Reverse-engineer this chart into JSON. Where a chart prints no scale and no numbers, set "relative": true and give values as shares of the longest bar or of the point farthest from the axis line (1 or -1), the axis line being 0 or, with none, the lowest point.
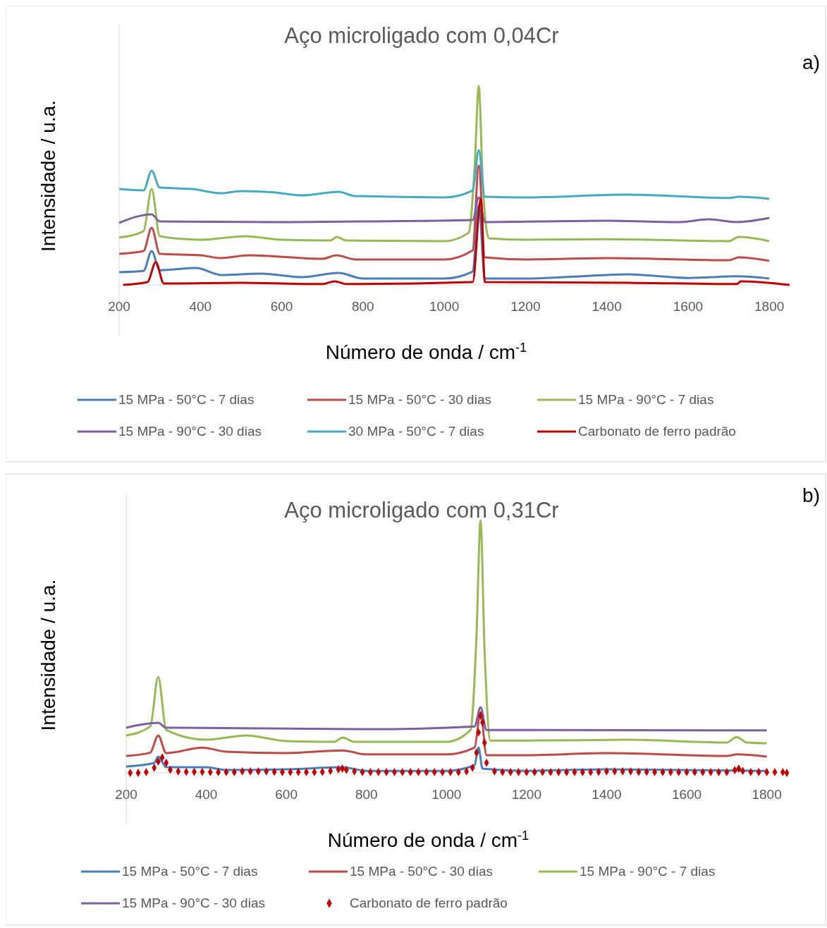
{
  "chart_data": [
    {
      "type": "line",
      "relative": true,
      "title": "Aço microligado com 0,04Cr",
      "xlabel": "Número de onda / cm$^{-1}$",
      "ylabel": "Intensidade / u.a.",
      "annotations": [
        "a)"
      ],
      "xlim": [
        200,
        1850
      ],
      "xticks": [
        200,
        400,
        600,
        800,
        1000,
        1200,
        1400,
        1600,
        1800
      ],
      "legend": "bottom",
      "series": [
        {
          "name": "15 MPa - 50°C - 7 dias",
          "color": "#4a7ebb",
          "x": [
            200,
            260,
            280,
            300,
            390,
            450,
            550,
            650,
            740,
            800,
            1000,
            1070,
            1085,
            1100,
            1200,
            1400,
            1450,
            1600,
            1720,
            1800
          ],
          "values": [
            0.064,
            0.07,
            0.17,
            0.074,
            0.085,
            0.05,
            0.057,
            0.039,
            0.06,
            0.032,
            0.032,
            0.067,
            0.4,
            0.032,
            0.032,
            0.05,
            0.053,
            0.035,
            0.043,
            0.032
          ]
        },
        {
          "name": "15 MPa - 50°C - 30 dias",
          "color": "#be4b48",
          "x": [
            200,
            260,
            280,
            300,
            400,
            450,
            520,
            700,
            735,
            780,
            1000,
            1070,
            1085,
            1100,
            1200,
            1400,
            1700,
            1725,
            1800
          ],
          "values": [
            0.156,
            0.17,
            0.287,
            0.156,
            0.149,
            0.135,
            0.149,
            0.131,
            0.149,
            0.128,
            0.128,
            0.174,
            0.6,
            0.138,
            0.128,
            0.135,
            0.124,
            0.138,
            0.121
          ]
        },
        {
          "name": "15 MPa - 90°C - 7 dias",
          "color": "#98b954",
          "x": [
            200,
            260,
            280,
            300,
            400,
            510,
            600,
            720,
            735,
            760,
            1000,
            1060,
            1075,
            1085,
            1095,
            1110,
            1200,
            1400,
            1700,
            1725,
            1800
          ],
          "values": [
            0.238,
            0.27,
            0.482,
            0.245,
            0.227,
            0.245,
            0.227,
            0.223,
            0.241,
            0.223,
            0.22,
            0.262,
            0.6,
            1,
            0.5,
            0.234,
            0.227,
            0.23,
            0.22,
            0.241,
            0.22
          ]
        },
        {
          "name": "15 MPa - 90°C - 30 dias",
          "color": "#7d60a0",
          "x": [
            200,
            280,
            300,
            600,
            800,
            1070,
            1085,
            1100,
            1400,
            1580,
            1650,
            1720,
            1800
          ],
          "values": [
            0.312,
            0.355,
            0.319,
            0.316,
            0.319,
            0.326,
            0.44,
            0.316,
            0.323,
            0.316,
            0.33,
            0.316,
            0.337
          ]
        },
        {
          "name": "30 MPa - 50°C - 7 dias",
          "color": "#46aac5",
          "x": [
            200,
            260,
            280,
            300,
            380,
            450,
            500,
            580,
            650,
            740,
            780,
            1000,
            1070,
            1085,
            1100,
            1200,
            1450,
            1700,
            1725,
            1800
          ],
          "values": [
            0.482,
            0.475,
            0.574,
            0.489,
            0.482,
            0.461,
            0.472,
            0.465,
            0.45,
            0.468,
            0.447,
            0.44,
            0.475,
            0.677,
            0.443,
            0.44,
            0.454,
            0.437,
            0.443,
            0.433
          ]
        },
        {
          "name": "Carbonato de ferro padrão",
          "color": "#c00000",
          "x": [
            210,
            270,
            290,
            310,
            500,
            700,
            730,
            760,
            1070,
            1090,
            1100,
            1450,
            1720,
            1730,
            1850
          ],
          "values": [
            0,
            0.014,
            0.114,
            0.007,
            0.011,
            0.004,
            0.018,
            0.004,
            0.014,
            0.433,
            0.014,
            0.011,
            0.004,
            0.018,
            0
          ]
        }
      ]
    },
    {
      "type": "line",
      "relative": true,
      "title": "Aço microligado com 0,31Cr",
      "xlabel": "Número de onda / cm$^{-1}$",
      "ylabel": "Intensidade / u.a.",
      "annotations": [
        "b)"
      ],
      "xlim": [
        200,
        1850
      ],
      "xticks": [
        200,
        400,
        600,
        800,
        1000,
        1200,
        1400,
        1600,
        1800
      ],
      "legend": "bottom",
      "series": [
        {
          "name": "15 MPa - 50°C - 7 dias",
          "color": "#4a7ebb",
          "x": [
            200,
            270,
            280,
            300,
            400,
            450,
            600,
            740,
            800,
            1000,
            1070,
            1080,
            1090,
            1200,
            1400,
            1800
          ],
          "values": [
            0.025,
            0.039,
            0.064,
            0.022,
            0.022,
            0.011,
            0.014,
            0.022,
            0.008,
            0.008,
            0.03,
            0.1,
            0.017,
            0.008,
            0.014,
            0.008
          ]
        },
        {
          "name": "15 MPa - 50°C - 30 dias",
          "color": "#be4b48",
          "x": [
            200,
            260,
            280,
            300,
            390,
            450,
            600,
            740,
            800,
            1000,
            1070,
            1085,
            1100,
            1200,
            1400,
            1700,
            1725,
            1800
          ],
          "values": [
            0.067,
            0.08,
            0.148,
            0.078,
            0.1,
            0.084,
            0.078,
            0.089,
            0.073,
            0.073,
            0.1,
            0.24,
            0.07,
            0.07,
            0.078,
            0.067,
            0.073,
            0.064
          ]
        },
        {
          "name": "15 MPa - 90°C - 7 dias",
          "color": "#98b954",
          "x": [
            200,
            260,
            280,
            300,
            400,
            500,
            600,
            720,
            740,
            770,
            1000,
            1060,
            1075,
            1085,
            1095,
            1110,
            1200,
            1450,
            1700,
            1725,
            1750,
            1800
          ],
          "values": [
            0.148,
            0.184,
            0.38,
            0.17,
            0.131,
            0.148,
            0.126,
            0.123,
            0.14,
            0.123,
            0.123,
            0.17,
            0.547,
            1,
            0.49,
            0.128,
            0.128,
            0.131,
            0.12,
            0.142,
            0.12,
            0.117
          ]
        },
        {
          "name": "15 MPa - 90°C - 30 dias",
          "color": "#7d60a0",
          "x": [
            200,
            280,
            300,
            800,
            1070,
            1085,
            1100,
            1800
          ],
          "values": [
            0.179,
            0.198,
            0.179,
            0.173,
            0.184,
            0.26,
            0.17,
            0.168
          ]
        },
        {
          "name": "Carbonato de ferro padrão",
          "color": "#c00000",
          "type": "scatter",
          "marker": "diamond",
          "x": [
            210,
            230,
            250,
            270,
            280,
            290,
            300,
            310,
            330,
            350,
            370,
            390,
            410,
            430,
            450,
            470,
            490,
            510,
            530,
            550,
            570,
            590,
            610,
            630,
            650,
            670,
            690,
            710,
            730,
            740,
            750,
            770,
            790,
            810,
            830,
            850,
            870,
            890,
            910,
            930,
            950,
            970,
            990,
            1010,
            1030,
            1050,
            1065,
            1075,
            1080,
            1085,
            1090,
            1095,
            1100,
            1120,
            1140,
            1160,
            1180,
            1200,
            1220,
            1240,
            1260,
            1280,
            1300,
            1320,
            1340,
            1360,
            1380,
            1400,
            1420,
            1440,
            1460,
            1480,
            1500,
            1520,
            1540,
            1560,
            1580,
            1600,
            1620,
            1640,
            1660,
            1680,
            1700,
            1720,
            1730,
            1740,
            1760,
            1780,
            1800,
            1820,
            1840,
            1850
          ],
          "values": [
            0,
            0,
            0.003,
            0.02,
            0.045,
            0.061,
            0.04,
            0.012,
            0.006,
            0.004,
            0.004,
            0.004,
            0.003,
            0.003,
            0.003,
            0.003,
            0.006,
            0.006,
            0.006,
            0.006,
            0.004,
            0.003,
            0.003,
            0.003,
            0.003,
            0.003,
            0.004,
            0.008,
            0.014,
            0.017,
            0.012,
            0.006,
            0.003,
            0.003,
            0.003,
            0.003,
            0.003,
            0.003,
            0.003,
            0.003,
            0.003,
            0.003,
            0.003,
            0.003,
            0.003,
            0.006,
            0.02,
            0.08,
            0.16,
            0.226,
            0.2,
            0.12,
            0.04,
            0.006,
            0.003,
            0.003,
            0.003,
            0.003,
            0.003,
            0.003,
            0.003,
            0.003,
            0.003,
            0.003,
            0.003,
            0.003,
            0.004,
            0.006,
            0.006,
            0.006,
            0.006,
            0.004,
            0.004,
            0.003,
            0.003,
            0.003,
            0.003,
            0.003,
            0.003,
            0.003,
            0.003,
            0.003,
            0.003,
            0.011,
            0.017,
            0.008,
            0.003,
            0.003,
            0.003,
            0.003,
            0.003,
            0
          ]
        }
      ]
    }
  ]
}
